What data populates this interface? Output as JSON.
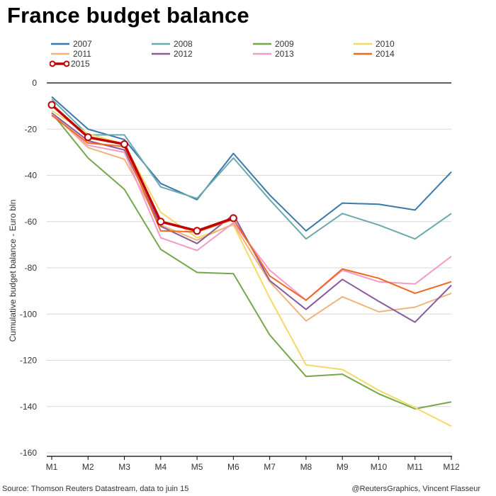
{
  "chart_data": {
    "type": "line",
    "title": "France budget balance",
    "xlabel": "",
    "ylabel": "Cumulative budget balance - Euro bln",
    "x": [
      "M1",
      "M2",
      "M3",
      "M4",
      "M5",
      "M6",
      "M7",
      "M8",
      "M9",
      "M10",
      "M11",
      "M12"
    ],
    "ylim": [
      -160,
      0
    ],
    "yticks": [
      0,
      -20,
      -40,
      -60,
      -80,
      -100,
      -120,
      -140,
      -160
    ],
    "ytick_labels": [
      "0",
      "-20",
      "-40",
      "-60",
      "-80",
      "-100",
      "-120",
      "-140",
      "-160"
    ],
    "grid": true,
    "legend_position": "top",
    "series": [
      {
        "name": "2007",
        "color": "#3a78ad",
        "values": [
          -6,
          -20,
          -24.5,
          -43.5,
          -50.5,
          -30.5,
          -48.5,
          -64,
          -52,
          -52.5,
          -55,
          -38.5
        ]
      },
      {
        "name": "2008",
        "color": "#6aa9ac",
        "values": [
          -7,
          -22.5,
          -22.5,
          -45,
          -50,
          -32.5,
          -50.5,
          -67.5,
          -56.5,
          -61.5,
          -67.5,
          -56.5
        ]
      },
      {
        "name": "2009",
        "color": "#74a84a",
        "values": [
          -13,
          -32.5,
          -46,
          -72,
          -82,
          -82.5,
          -109,
          -127,
          -126,
          -134.5,
          -141,
          -138
        ]
      },
      {
        "name": "2010",
        "color": "#f5d865",
        "values": [
          -12,
          -22,
          -26.5,
          -56,
          -67,
          -61.5,
          -93,
          -122,
          -124,
          -133,
          -140.5,
          -148.5
        ]
      },
      {
        "name": "2011",
        "color": "#f0b47a",
        "values": [
          -13,
          -28,
          -33,
          -61.5,
          -68,
          -61,
          -86,
          -103,
          -92.5,
          -99,
          -97,
          -91
        ]
      },
      {
        "name": "2012",
        "color": "#8a5a9e",
        "values": [
          -13,
          -25,
          -29,
          -62,
          -69.5,
          -57,
          -85.5,
          -98,
          -85,
          -94.5,
          -103.5,
          -87.5
        ]
      },
      {
        "name": "2013",
        "color": "#f39ac7",
        "values": [
          -13.5,
          -27,
          -30,
          -67,
          -72.5,
          -60.5,
          -81,
          -94,
          -81,
          -86,
          -87,
          -75
        ]
      },
      {
        "name": "2014",
        "color": "#ee6a1f",
        "values": [
          -14,
          -26,
          -27.5,
          -64,
          -64.5,
          -59,
          -83.5,
          -94,
          -80.5,
          -84.5,
          -91,
          -86
        ]
      },
      {
        "name": "2015",
        "color": "#c00000",
        "markers": true,
        "values": [
          -9.5,
          -23.5,
          -26.5,
          -60,
          -64,
          -58.5
        ]
      }
    ]
  },
  "footer": {
    "source": "Source: Thomson Reuters Datastream, data to juin 15",
    "credit": "@ReutersGraphics, Vincent Flasseur"
  }
}
